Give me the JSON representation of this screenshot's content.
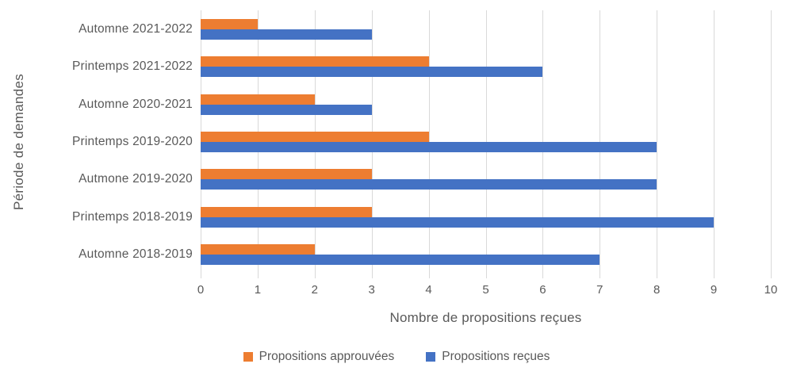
{
  "chart_data": {
    "type": "bar",
    "orientation": "horizontal",
    "categories": [
      "Automne 2021-2022",
      "Printemps 2021-2022",
      "Automne 2020-2021",
      "Printemps 2019-2020",
      "Autmone 2019-2020",
      "Printemps 2018-2019",
      "Automne 2018-2019"
    ],
    "series": [
      {
        "name": "Propositions approuvées",
        "color": "#ED7D31",
        "values": [
          1,
          4,
          2,
          4,
          3,
          3,
          2
        ]
      },
      {
        "name": "Propositions reçues",
        "color": "#4472C4",
        "values": [
          3,
          6,
          3,
          8,
          8,
          9,
          7
        ]
      }
    ],
    "xlabel": "Nombre de propositions reçues",
    "ylabel": "Période de demandes",
    "xlim": [
      0,
      10
    ],
    "xticks": [
      0,
      1,
      2,
      3,
      4,
      5,
      6,
      7,
      8,
      9,
      10
    ],
    "grid": true,
    "legend_position": "bottom"
  },
  "colors": {
    "gridline": "#D9D9D9",
    "axis_text": "#595959",
    "background": "#FFFFFF"
  }
}
